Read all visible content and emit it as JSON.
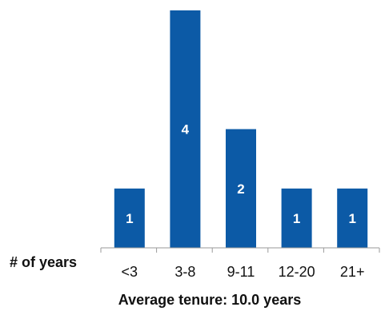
{
  "chart_data": {
    "type": "bar",
    "categories": [
      "<3",
      "3-8",
      "9-11",
      "12-20",
      "21+"
    ],
    "values": [
      1,
      4,
      2,
      1,
      1
    ],
    "data_labels": [
      "1",
      "4",
      "2",
      "1",
      "1"
    ],
    "xlabel": "# of years",
    "caption": "Average tenure: 10.0 years",
    "ylim": [
      0,
      4
    ],
    "grid": false,
    "y_axis_visible": false,
    "bar_color": "#0c5aa6"
  }
}
